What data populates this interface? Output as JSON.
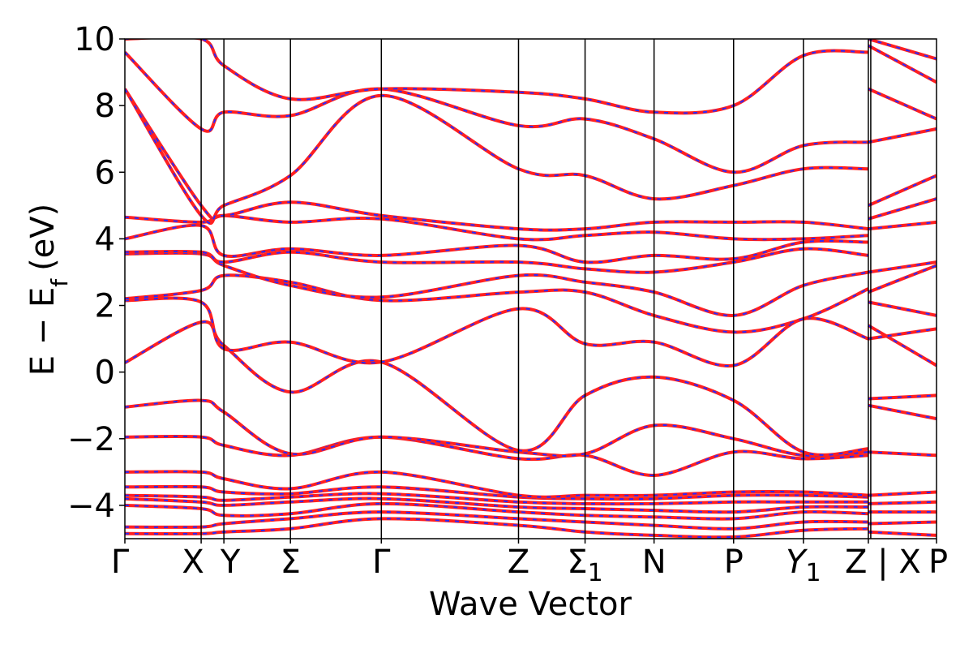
{
  "chart_data": {
    "type": "line",
    "title": "",
    "xlabel": "Wave Vector",
    "ylabel": "E − E",
    "ylabel_subscript": "f",
    "ylabel_unit": "(eV)",
    "ylim": [
      -5,
      10
    ],
    "yticks": [
      "10",
      "8",
      "6",
      "4",
      "2",
      "0",
      "−2",
      "−4"
    ],
    "ytick_values": [
      10,
      8,
      6,
      4,
      2,
      0,
      -2,
      -4
    ],
    "grid": false,
    "legend": "none",
    "colors": {
      "reference": "#ff2020",
      "overlay": "#2a2aff",
      "axis": "#000000"
    },
    "segment_break_after": 9,
    "kpoints": [
      {
        "label": "Γ",
        "sub": "",
        "x": 0.0
      },
      {
        "label": "X",
        "sub": "",
        "x": 0.094
      },
      {
        "label": "Y",
        "sub": "",
        "x": 0.122
      },
      {
        "label": "Σ",
        "sub": "",
        "x": 0.204
      },
      {
        "label": "Γ",
        "sub": "",
        "x": 0.316
      },
      {
        "label": "Z",
        "sub": "",
        "x": 0.485
      },
      {
        "label": "Σ",
        "sub": "1",
        "x": 0.567
      },
      {
        "label": "N",
        "sub": "",
        "x": 0.652
      },
      {
        "label": "P",
        "sub": "",
        "x": 0.75
      },
      {
        "label": "Y",
        "sub": "1",
        "x": 0.836
      },
      {
        "label": "Z | X",
        "sub": "",
        "x": 0.916
      },
      {
        "label": "P",
        "sub": "",
        "x": 1.0
      }
    ],
    "bands": [
      [
        [
          0,
          -4.85
        ],
        [
          0.094,
          -4.85
        ],
        [
          0.122,
          -4.8
        ],
        [
          0.204,
          -4.7
        ],
        [
          0.316,
          -4.4
        ],
        [
          0.485,
          -4.6
        ],
        [
          0.567,
          -4.8
        ],
        [
          0.652,
          -4.9
        ],
        [
          0.75,
          -4.95
        ],
        [
          0.836,
          -4.75
        ],
        [
          0.916,
          -4.7
        ]
      ],
      [
        [
          0,
          -4.65
        ],
        [
          0.094,
          -4.65
        ],
        [
          0.122,
          -4.55
        ],
        [
          0.204,
          -4.4
        ],
        [
          0.316,
          -4.2
        ],
        [
          0.485,
          -4.4
        ],
        [
          0.567,
          -4.5
        ],
        [
          0.652,
          -4.6
        ],
        [
          0.75,
          -4.7
        ],
        [
          0.836,
          -4.5
        ],
        [
          0.916,
          -4.5
        ]
      ],
      [
        [
          0,
          -4.0
        ],
        [
          0.094,
          -4.1
        ],
        [
          0.122,
          -4.3
        ],
        [
          0.204,
          -4.25
        ],
        [
          0.316,
          -3.95
        ],
        [
          0.485,
          -4.2
        ],
        [
          0.567,
          -4.3
        ],
        [
          0.652,
          -4.35
        ],
        [
          0.75,
          -4.4
        ],
        [
          0.836,
          -4.2
        ],
        [
          0.916,
          -4.25
        ]
      ],
      [
        [
          0,
          -3.8
        ],
        [
          0.094,
          -3.9
        ],
        [
          0.122,
          -4.0
        ],
        [
          0.204,
          -3.9
        ],
        [
          0.316,
          -3.8
        ],
        [
          0.485,
          -4.05
        ],
        [
          0.567,
          -4.1
        ],
        [
          0.652,
          -4.15
        ],
        [
          0.75,
          -4.2
        ],
        [
          0.836,
          -4.05
        ],
        [
          0.916,
          -4.05
        ]
      ],
      [
        [
          0,
          -3.7
        ],
        [
          0.094,
          -3.75
        ],
        [
          0.122,
          -3.85
        ],
        [
          0.204,
          -3.75
        ],
        [
          0.316,
          -3.65
        ],
        [
          0.485,
          -3.9
        ],
        [
          0.567,
          -3.95
        ],
        [
          0.652,
          -3.95
        ],
        [
          0.75,
          -3.9
        ],
        [
          0.836,
          -3.9
        ],
        [
          0.916,
          -3.9
        ]
      ],
      [
        [
          0,
          -3.45
        ],
        [
          0.094,
          -3.45
        ],
        [
          0.122,
          -3.6
        ],
        [
          0.204,
          -3.65
        ],
        [
          0.316,
          -3.45
        ],
        [
          0.485,
          -3.75
        ],
        [
          0.567,
          -3.8
        ],
        [
          0.652,
          -3.8
        ],
        [
          0.75,
          -3.7
        ],
        [
          0.836,
          -3.7
        ],
        [
          0.916,
          -3.75
        ]
      ],
      [
        [
          0,
          -3.0
        ],
        [
          0.094,
          -3.0
        ],
        [
          0.122,
          -3.2
        ],
        [
          0.204,
          -3.5
        ],
        [
          0.316,
          -3.0
        ],
        [
          0.485,
          -3.7
        ],
        [
          0.567,
          -3.7
        ],
        [
          0.652,
          -3.7
        ],
        [
          0.75,
          -3.6
        ],
        [
          0.836,
          -3.6
        ],
        [
          0.916,
          -3.7
        ]
      ],
      [
        [
          0,
          -1.95
        ],
        [
          0.094,
          -1.95
        ],
        [
          0.122,
          -2.2
        ],
        [
          0.204,
          -2.5
        ],
        [
          0.316,
          -1.95
        ],
        [
          0.485,
          -2.6
        ],
        [
          0.567,
          -2.5
        ],
        [
          0.652,
          -3.1
        ],
        [
          0.75,
          -2.4
        ],
        [
          0.836,
          -2.6
        ],
        [
          0.916,
          -2.5
        ]
      ],
      [
        [
          0,
          -1.05
        ],
        [
          0.094,
          -0.85
        ],
        [
          0.122,
          -1.2
        ],
        [
          0.204,
          -2.45
        ],
        [
          0.316,
          -1.95
        ],
        [
          0.485,
          -2.4
        ],
        [
          0.567,
          -2.45
        ],
        [
          0.652,
          -1.6
        ],
        [
          0.75,
          -2.0
        ],
        [
          0.836,
          -2.5
        ],
        [
          0.916,
          -2.4
        ]
      ],
      [
        [
          0,
          0.28
        ],
        [
          0.094,
          1.5
        ],
        [
          0.122,
          0.8
        ],
        [
          0.204,
          -0.6
        ],
        [
          0.316,
          0.3
        ],
        [
          0.485,
          -2.35
        ],
        [
          0.567,
          -0.7
        ],
        [
          0.652,
          -0.15
        ],
        [
          0.75,
          -0.85
        ],
        [
          0.836,
          -2.4
        ],
        [
          0.916,
          -2.3
        ]
      ],
      [
        [
          0,
          2.15
        ],
        [
          0.094,
          2.1
        ],
        [
          0.122,
          0.7
        ],
        [
          0.204,
          0.9
        ],
        [
          0.316,
          0.3
        ],
        [
          0.485,
          1.9
        ],
        [
          0.567,
          0.85
        ],
        [
          0.652,
          0.9
        ],
        [
          0.75,
          0.2
        ],
        [
          0.836,
          1.6
        ],
        [
          0.916,
          1.0
        ]
      ],
      [
        [
          0,
          2.2
        ],
        [
          0.094,
          2.45
        ],
        [
          0.122,
          2.9
        ],
        [
          0.204,
          2.7
        ],
        [
          0.316,
          2.15
        ],
        [
          0.485,
          2.4
        ],
        [
          0.567,
          2.4
        ],
        [
          0.652,
          1.7
        ],
        [
          0.75,
          1.2
        ],
        [
          0.836,
          1.6
        ],
        [
          0.916,
          2.5
        ]
      ],
      [
        [
          0,
          3.55
        ],
        [
          0.094,
          3.55
        ],
        [
          0.122,
          3.2
        ],
        [
          0.204,
          2.6
        ],
        [
          0.316,
          2.25
        ],
        [
          0.485,
          2.9
        ],
        [
          0.567,
          2.7
        ],
        [
          0.652,
          2.4
        ],
        [
          0.75,
          1.7
        ],
        [
          0.836,
          2.6
        ],
        [
          0.916,
          3.0
        ]
      ],
      [
        [
          0,
          3.6
        ],
        [
          0.094,
          3.6
        ],
        [
          0.122,
          3.3
        ],
        [
          0.204,
          3.6
        ],
        [
          0.316,
          3.3
        ],
        [
          0.485,
          3.3
        ],
        [
          0.567,
          3.1
        ],
        [
          0.652,
          3.0
        ],
        [
          0.75,
          3.3
        ],
        [
          0.836,
          3.7
        ],
        [
          0.916,
          3.5
        ]
      ],
      [
        [
          0,
          4.0
        ],
        [
          0.094,
          4.4
        ],
        [
          0.122,
          3.5
        ],
        [
          0.204,
          3.7
        ],
        [
          0.316,
          3.5
        ],
        [
          0.485,
          3.8
        ],
        [
          0.567,
          3.3
        ],
        [
          0.652,
          3.5
        ],
        [
          0.75,
          3.4
        ],
        [
          0.836,
          3.9
        ],
        [
          0.916,
          3.9
        ]
      ],
      [
        [
          0,
          4.65
        ],
        [
          0.094,
          4.5
        ],
        [
          0.122,
          4.7
        ],
        [
          0.204,
          4.5
        ],
        [
          0.316,
          4.6
        ],
        [
          0.485,
          4.0
        ],
        [
          0.567,
          4.1
        ],
        [
          0.652,
          4.2
        ],
        [
          0.75,
          4.0
        ],
        [
          0.836,
          4.0
        ],
        [
          0.916,
          4.1
        ]
      ],
      [
        [
          0,
          8.5
        ],
        [
          0.094,
          5.0
        ],
        [
          0.122,
          4.7
        ],
        [
          0.204,
          5.1
        ],
        [
          0.316,
          4.7
        ],
        [
          0.485,
          4.3
        ],
        [
          0.567,
          4.3
        ],
        [
          0.652,
          4.5
        ],
        [
          0.75,
          4.5
        ],
        [
          0.836,
          4.5
        ],
        [
          0.916,
          4.3
        ]
      ],
      [
        [
          0,
          8.5
        ],
        [
          0.094,
          4.7
        ],
        [
          0.122,
          5.0
        ],
        [
          0.204,
          5.9
        ],
        [
          0.316,
          8.3
        ],
        [
          0.485,
          6.1
        ],
        [
          0.567,
          5.9
        ],
        [
          0.652,
          5.2
        ],
        [
          0.75,
          5.6
        ],
        [
          0.836,
          6.1
        ],
        [
          0.916,
          6.1
        ]
      ],
      [
        [
          0,
          9.6
        ],
        [
          0.094,
          7.3
        ],
        [
          0.122,
          7.8
        ],
        [
          0.204,
          7.7
        ],
        [
          0.316,
          8.5
        ],
        [
          0.485,
          7.4
        ],
        [
          0.567,
          7.6
        ],
        [
          0.652,
          7.0
        ],
        [
          0.75,
          6.0
        ],
        [
          0.836,
          6.8
        ],
        [
          0.916,
          6.9
        ]
      ],
      [
        [
          0,
          10.0
        ],
        [
          0.094,
          10.0
        ],
        [
          0.122,
          9.2
        ],
        [
          0.204,
          8.2
        ],
        [
          0.316,
          8.5
        ],
        [
          0.485,
          8.4
        ],
        [
          0.567,
          8.2
        ],
        [
          0.652,
          7.8
        ],
        [
          0.75,
          8.0
        ],
        [
          0.836,
          9.5
        ],
        [
          0.916,
          9.6
        ]
      ],
      [
        [
          0.916,
          -4.8
        ],
        [
          1.0,
          -4.9
        ]
      ],
      [
        [
          0.916,
          -4.55
        ],
        [
          1.0,
          -4.5
        ]
      ],
      [
        [
          0.916,
          -4.2
        ],
        [
          1.0,
          -4.2
        ]
      ],
      [
        [
          0.916,
          -3.95
        ],
        [
          1.0,
          -3.9
        ]
      ],
      [
        [
          0.916,
          -3.7
        ],
        [
          1.0,
          -3.6
        ]
      ],
      [
        [
          0.916,
          -2.4
        ],
        [
          1.0,
          -2.5
        ]
      ],
      [
        [
          0.916,
          -1.0
        ],
        [
          1.0,
          -1.4
        ]
      ],
      [
        [
          0.916,
          -0.8
        ],
        [
          1.0,
          -0.7
        ]
      ],
      [
        [
          0.916,
          1.4
        ],
        [
          1.0,
          0.2
        ]
      ],
      [
        [
          0.916,
          1.0
        ],
        [
          1.0,
          1.3
        ]
      ],
      [
        [
          0.916,
          2.1
        ],
        [
          1.0,
          1.7
        ]
      ],
      [
        [
          0.916,
          2.4
        ],
        [
          1.0,
          3.2
        ]
      ],
      [
        [
          0.916,
          3.0
        ],
        [
          1.0,
          3.3
        ]
      ],
      [
        [
          0.916,
          4.3
        ],
        [
          1.0,
          4.5
        ]
      ],
      [
        [
          0.916,
          4.6
        ],
        [
          1.0,
          5.2
        ]
      ],
      [
        [
          0.916,
          5.0
        ],
        [
          1.0,
          5.9
        ]
      ],
      [
        [
          0.916,
          6.9
        ],
        [
          1.0,
          7.3
        ]
      ],
      [
        [
          0.916,
          8.5
        ],
        [
          1.0,
          7.6
        ]
      ],
      [
        [
          0.916,
          9.8
        ],
        [
          1.0,
          8.7
        ]
      ],
      [
        [
          0.916,
          10.0
        ],
        [
          1.0,
          9.4
        ]
      ]
    ]
  }
}
